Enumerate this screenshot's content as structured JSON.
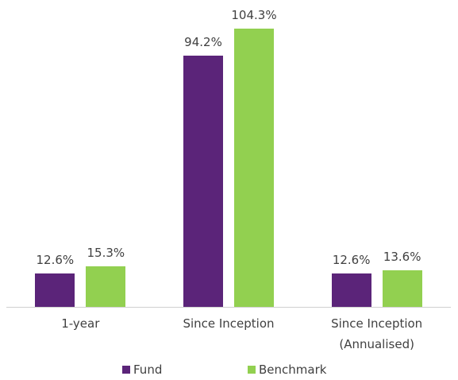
{
  "chart_data": {
    "type": "bar",
    "categories": [
      "1-year",
      "Since Inception",
      "Since Inception\n(Annualised)"
    ],
    "series": [
      {
        "name": "Fund",
        "color": "#5b2479",
        "values": [
          12.6,
          94.2,
          12.6
        ],
        "value_labels": [
          "12.6%",
          "94.2%",
          "12.6%"
        ]
      },
      {
        "name": "Benchmark",
        "color": "#92d050",
        "values": [
          15.3,
          104.3,
          13.6
        ],
        "value_labels": [
          "15.3%",
          "104.3%",
          "13.6%"
        ]
      }
    ],
    "legend": "bottom"
  }
}
